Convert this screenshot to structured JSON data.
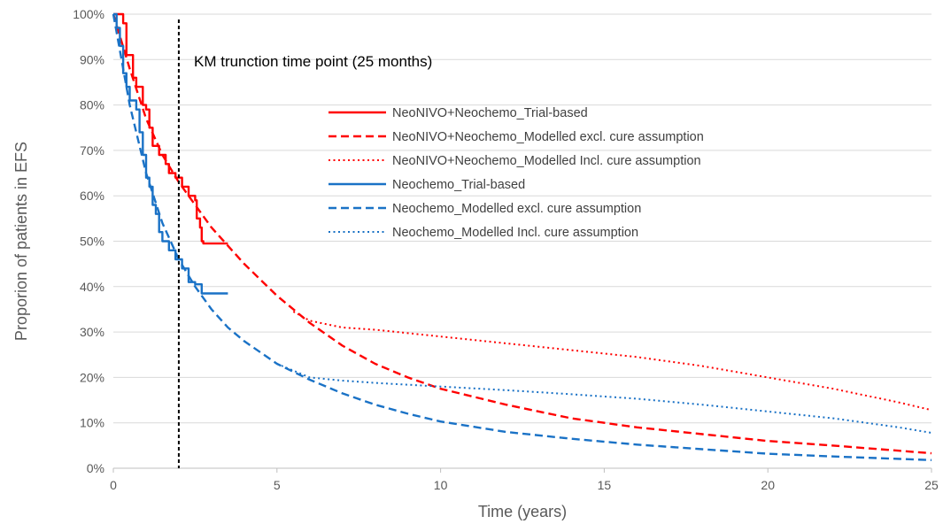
{
  "chart_data": {
    "type": "line",
    "xlabel": "Time (years)",
    "ylabel": "Proporion of patients in EFS",
    "xlim": [
      0,
      25
    ],
    "ylim": [
      0,
      100
    ],
    "x_ticks": [
      0,
      5,
      10,
      15,
      20,
      25
    ],
    "y_ticks": [
      0,
      10,
      20,
      30,
      40,
      50,
      60,
      70,
      80,
      90,
      100
    ],
    "y_tick_suffix": "%",
    "grid": "horizontal",
    "legend_position": "center-right",
    "annotation": {
      "text": "KM trunction time point (25 months)",
      "x": 2.0
    },
    "series": [
      {
        "name": "NeoNIVO+Neochemo_Trial-based",
        "color": "#ff0000",
        "style": "solid",
        "step": true,
        "points": [
          [
            0,
            100
          ],
          [
            0.3,
            98
          ],
          [
            0.4,
            91
          ],
          [
            0.6,
            86
          ],
          [
            0.7,
            84
          ],
          [
            0.9,
            80
          ],
          [
            1.0,
            79
          ],
          [
            1.1,
            75
          ],
          [
            1.2,
            71
          ],
          [
            1.4,
            69
          ],
          [
            1.6,
            67
          ],
          [
            1.7,
            65
          ],
          [
            1.9,
            64
          ],
          [
            2.1,
            62
          ],
          [
            2.3,
            60
          ],
          [
            2.5,
            59
          ],
          [
            2.55,
            55
          ],
          [
            2.65,
            53
          ],
          [
            2.7,
            50
          ],
          [
            2.75,
            49.5
          ],
          [
            3.5,
            49.5
          ]
        ]
      },
      {
        "name": "NeoNIVO+Neochemo_Modelled excl. cure assumption",
        "color": "#ff0000",
        "style": "dashed",
        "points": [
          [
            0,
            100
          ],
          [
            0.5,
            88
          ],
          [
            1,
            77
          ],
          [
            1.5,
            69
          ],
          [
            2,
            63
          ],
          [
            2.5,
            58
          ],
          [
            3,
            53
          ],
          [
            4,
            45
          ],
          [
            5,
            38
          ],
          [
            6,
            32
          ],
          [
            7,
            27
          ],
          [
            8,
            23
          ],
          [
            9,
            20
          ],
          [
            10,
            17.5
          ],
          [
            12,
            14
          ],
          [
            14,
            11
          ],
          [
            16,
            9
          ],
          [
            18,
            7.5
          ],
          [
            20,
            6
          ],
          [
            22,
            5
          ],
          [
            25,
            3.3
          ]
        ]
      },
      {
        "name": "NeoNIVO+Neochemo_Modelled Incl. cure assumption",
        "color": "#ff0000",
        "style": "dotted",
        "points": [
          [
            5.5,
            34.5
          ],
          [
            6,
            32.5
          ],
          [
            7,
            31
          ],
          [
            8,
            30.5
          ],
          [
            10,
            29
          ],
          [
            12,
            27.5
          ],
          [
            14,
            26
          ],
          [
            16,
            24.5
          ],
          [
            18,
            22.5
          ],
          [
            20,
            20
          ],
          [
            22,
            17.5
          ],
          [
            24,
            14.5
          ],
          [
            25,
            12.8
          ]
        ]
      },
      {
        "name": "Neochemo_Trial-based",
        "color": "#1a72c6",
        "style": "solid",
        "step": true,
        "points": [
          [
            0,
            100
          ],
          [
            0.1,
            97
          ],
          [
            0.2,
            93
          ],
          [
            0.3,
            87
          ],
          [
            0.4,
            84
          ],
          [
            0.5,
            81
          ],
          [
            0.7,
            79
          ],
          [
            0.8,
            74
          ],
          [
            0.9,
            69
          ],
          [
            1.0,
            64
          ],
          [
            1.1,
            62
          ],
          [
            1.2,
            58
          ],
          [
            1.3,
            56
          ],
          [
            1.4,
            52
          ],
          [
            1.5,
            50
          ],
          [
            1.7,
            48
          ],
          [
            1.9,
            46
          ],
          [
            2.1,
            44
          ],
          [
            2.3,
            41
          ],
          [
            2.5,
            40.5
          ],
          [
            2.7,
            38.5
          ],
          [
            3.5,
            38.5
          ]
        ]
      },
      {
        "name": "Neochemo_Modelled excl. cure assumption",
        "color": "#1a72c6",
        "style": "dashed",
        "points": [
          [
            0,
            100
          ],
          [
            0.5,
            80
          ],
          [
            1,
            65
          ],
          [
            1.5,
            54
          ],
          [
            2,
            46
          ],
          [
            2.5,
            40
          ],
          [
            3,
            35
          ],
          [
            3.5,
            31
          ],
          [
            4,
            28
          ],
          [
            5,
            23
          ],
          [
            6,
            19.5
          ],
          [
            7,
            16.5
          ],
          [
            8,
            14
          ],
          [
            9,
            12
          ],
          [
            10,
            10.3
          ],
          [
            12,
            8
          ],
          [
            14,
            6.5
          ],
          [
            16,
            5.2
          ],
          [
            18,
            4.2
          ],
          [
            20,
            3.2
          ],
          [
            22,
            2.6
          ],
          [
            25,
            1.8
          ]
        ]
      },
      {
        "name": "Neochemo_Modelled Incl. cure assumption",
        "color": "#1a72c6",
        "style": "dotted",
        "points": [
          [
            5,
            23
          ],
          [
            6,
            20
          ],
          [
            7,
            19.3
          ],
          [
            8,
            18.8
          ],
          [
            10,
            18
          ],
          [
            12,
            17.2
          ],
          [
            14,
            16.3
          ],
          [
            16,
            15.3
          ],
          [
            18,
            14
          ],
          [
            20,
            12.5
          ],
          [
            22,
            11
          ],
          [
            24,
            9
          ],
          [
            25,
            7.8
          ]
        ]
      }
    ]
  }
}
